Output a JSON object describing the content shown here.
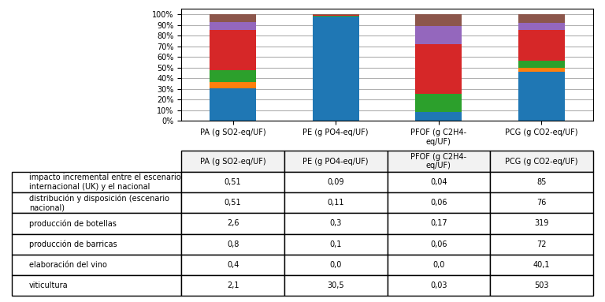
{
  "chart_data": {
    "type": "bar",
    "stacked": true,
    "categories": [
      "PA (g SO2-eq/UF)",
      "PE (g PO4-eq/UF)",
      "PFOF (g C2H4-\neq/UF)",
      "PCG (g CO2-eq/UF)"
    ],
    "series": [
      {
        "name": "viticultura",
        "values": [
          30.3468,
          98.0707,
          8.3333,
          45.9319
        ],
        "table_values": [
          "2,1",
          "30,5",
          "0,03",
          "503"
        ]
      },
      {
        "name": "elaboración del vino",
        "values": [
          5.7803,
          0.0,
          0.0,
          3.6618
        ],
        "table_values": [
          "0,4",
          "0,0",
          "0,0",
          "40,1"
        ]
      },
      {
        "name": "producción de barricas",
        "values": [
          11.5607,
          0.3215,
          16.6667,
          6.5747
        ],
        "table_values": [
          "0,8",
          "0,1",
          "0,06",
          "72"
        ]
      },
      {
        "name": "producción de botellas",
        "values": [
          37.5723,
          0.9646,
          47.2222,
          29.1298
        ],
        "table_values": [
          "2,6",
          "0,3",
          "0,17",
          "319"
        ]
      },
      {
        "name": "distribución y disposición (escenario\nnacional)",
        "values": [
          7.3699,
          0.3537,
          16.6667,
          6.94
        ],
        "table_values": [
          "0,51",
          "0,11",
          "0,06",
          "76"
        ]
      },
      {
        "name": "impacto incremental entre el escenario\ninternacional (UK) y el nacional",
        "values": [
          7.3699,
          0.2894,
          11.1111,
          7.7618
        ],
        "table_values": [
          "0,51",
          "0,09",
          "0,04",
          "85"
        ]
      }
    ],
    "ylim": [
      0,
      105
    ],
    "yticks": [
      {
        "value": 0,
        "label": "0%"
      },
      {
        "value": 10,
        "label": "10%"
      },
      {
        "value": 20,
        "label": "20%"
      },
      {
        "value": 30,
        "label": "30%"
      },
      {
        "value": 40,
        "label": "40%"
      },
      {
        "value": 50,
        "label": "50%"
      },
      {
        "value": 60,
        "label": "60%"
      },
      {
        "value": 70,
        "label": "70%"
      },
      {
        "value": 80,
        "label": "80%"
      },
      {
        "value": 90,
        "label": "90%"
      },
      {
        "value": 100,
        "label": "100%"
      }
    ],
    "grid": true
  }
}
